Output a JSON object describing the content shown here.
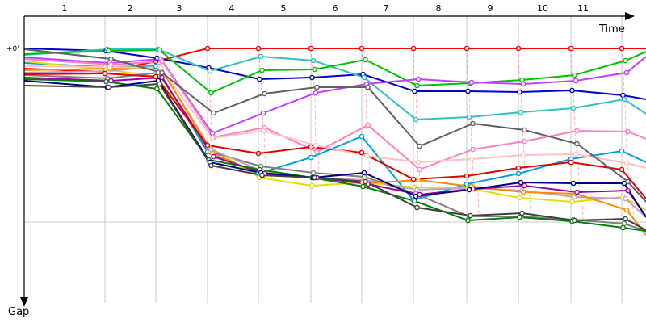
{
  "chart_data": {
    "type": "line",
    "xlabel": "Time",
    "ylabel": "Gap",
    "y_tick_label": "+0'",
    "lap_labels": [
      "1",
      "2",
      "3",
      "4",
      "5",
      "6",
      "7",
      "8",
      "9",
      "10",
      "11"
    ],
    "colors": {
      "grid": "#c8c8c8",
      "lap_connector": "#ff5a5a",
      "axis": "#000000"
    },
    "series": [
      {
        "color": "#ff0000",
        "values": [
          25,
          29,
          16,
          0,
          0,
          0,
          0,
          0,
          0,
          0,
          0,
          0,
          0
        ]
      },
      {
        "color": "#0000c8",
        "values": [
          0,
          3,
          12,
          24,
          38,
          36,
          32,
          53,
          53,
          54,
          52,
          58,
          63
        ]
      },
      {
        "color": "#30c0c0",
        "values": [
          8,
          1,
          1,
          28,
          10,
          15,
          36,
          88,
          85,
          79,
          74,
          63,
          81
        ]
      },
      {
        "color": "#00c000",
        "values": [
          7,
          3,
          2,
          55,
          27,
          26,
          14,
          46,
          43,
          39,
          33,
          15,
          4
        ]
      },
      {
        "color": "#c040ff",
        "values": [
          11,
          18,
          13,
          105,
          80,
          55,
          44,
          38,
          42,
          44,
          40,
          30,
          10
        ]
      },
      {
        "color": "#ff80c0",
        "values": [
          13,
          20,
          16,
          110,
          98,
          128,
          95,
          150,
          125,
          115,
          102,
          103,
          112
        ]
      },
      {
        "color": "#00a0e0",
        "values": [
          18,
          23,
          22,
          128,
          155,
          135,
          109,
          188,
          168,
          155,
          137,
          127,
          141
        ]
      },
      {
        "color": "#e0e000",
        "values": [
          16,
          26,
          35,
          122,
          160,
          170,
          166,
          172,
          173,
          185,
          190,
          184,
          200
        ]
      },
      {
        "color": "#808080",
        "values": [
          33,
          37,
          30,
          128,
          146,
          154,
          159,
          180,
          208,
          208,
          212,
          217,
          226
        ]
      },
      {
        "color": "#c0a0c0",
        "values": [
          30,
          28,
          22,
          125,
          152,
          160,
          163,
          175,
          173,
          176,
          184,
          186,
          209
        ]
      },
      {
        "color": "#ff8c00",
        "values": [
          27,
          25,
          24,
          130,
          157,
          160,
          167,
          163,
          171,
          178,
          180,
          200,
          231
        ]
      },
      {
        "color": "#a000a0",
        "values": [
          36,
          40,
          36,
          134,
          155,
          160,
          168,
          181,
          174,
          170,
          178,
          176,
          208
        ]
      },
      {
        "color": "#e00000",
        "values": [
          32,
          31,
          35,
          120,
          130,
          122,
          129,
          162,
          158,
          148,
          141,
          150,
          186
        ]
      },
      {
        "color": "#008000",
        "values": [
          38,
          41,
          50,
          138,
          150,
          160,
          171,
          189,
          213,
          209,
          214,
          222,
          226
        ]
      },
      {
        "color": "#000080",
        "values": [
          40,
          48,
          40,
          141,
          154,
          160,
          154,
          183,
          175,
          166,
          167,
          167,
          209
        ]
      },
      {
        "color": "#404040",
        "values": [
          46,
          48,
          44,
          145,
          157,
          160,
          165,
          197,
          207,
          204,
          213,
          211,
          225
        ]
      },
      {
        "color": "#ffc0c0",
        "values": [
          22,
          23,
          24,
          111,
          102,
          120,
          133,
          141,
          137,
          132,
          131,
          142,
          148
        ]
      },
      {
        "color": "#606060",
        "values": [
          1,
          13,
          30,
          80,
          56,
          48,
          48,
          121,
          93,
          101,
          118,
          165,
          190
        ]
      }
    ]
  }
}
